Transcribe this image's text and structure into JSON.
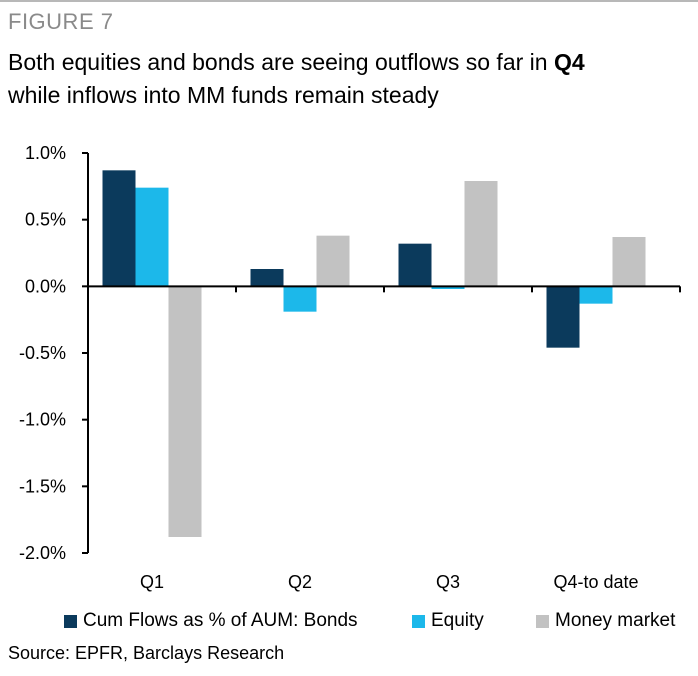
{
  "figure_label": "FIGURE 7",
  "title_line1": "Both equities and bonds are seeing outflows so far in ",
  "title_line1_bold": "Q4",
  "title_line2": "while inflows into MM funds remain steady",
  "source": "Source: EPFR, Barclays Research",
  "colors": {
    "bonds": "#0b3a5c",
    "equity": "#1cb8ea",
    "money_market": "#c2c2c2",
    "axis": "#000000"
  },
  "chart_data": {
    "type": "bar",
    "title": "Both equities and bonds are seeing outflows so far in Q4 while inflows into MM funds remain steady",
    "xlabel": "",
    "ylabel": "",
    "categories": [
      "Q1",
      "Q2",
      "Q3",
      "Q4-to date"
    ],
    "ylim": [
      -2.0,
      1.0
    ],
    "yticks": [
      1.0,
      0.5,
      0.0,
      -0.5,
      -1.0,
      -1.5,
      -2.0
    ],
    "ytick_labels": [
      "1.0%",
      "0.5%",
      "0.0%",
      "-0.5%",
      "-1.0%",
      "-1.5%",
      "-2.0%"
    ],
    "grid": false,
    "legend_position": "bottom",
    "series": [
      {
        "name": "Cum Flows as % of AUM: Bonds",
        "color_key": "bonds",
        "values": [
          0.87,
          0.13,
          0.32,
          -0.46
        ]
      },
      {
        "name": "Equity",
        "color_key": "equity",
        "values": [
          0.74,
          -0.19,
          -0.02,
          -0.13
        ]
      },
      {
        "name": "Money market",
        "color_key": "money_market",
        "values": [
          -1.88,
          0.38,
          0.79,
          0.37
        ]
      }
    ]
  }
}
